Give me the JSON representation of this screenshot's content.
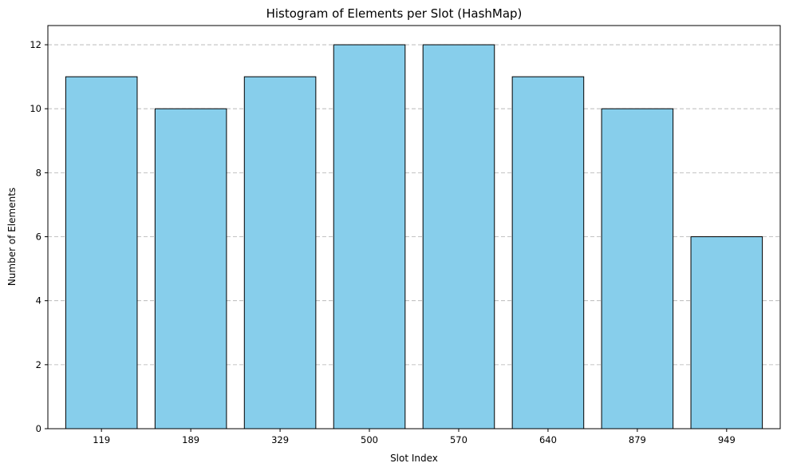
{
  "chart_data": {
    "type": "bar",
    "title": "Histogram of Elements per Slot (HashMap)",
    "xlabel": "Slot Index",
    "ylabel": "Number of Elements",
    "categories": [
      "119",
      "189",
      "329",
      "500",
      "570",
      "640",
      "879",
      "949"
    ],
    "values": [
      11,
      10,
      11,
      12,
      12,
      11,
      10,
      6
    ],
    "ylim": [
      0,
      12.6
    ],
    "yticks": [
      0,
      2,
      4,
      6,
      8,
      10,
      12
    ],
    "grid": "y-dashed",
    "bar_color": "#87CEEB",
    "edge_color": "#000000"
  }
}
